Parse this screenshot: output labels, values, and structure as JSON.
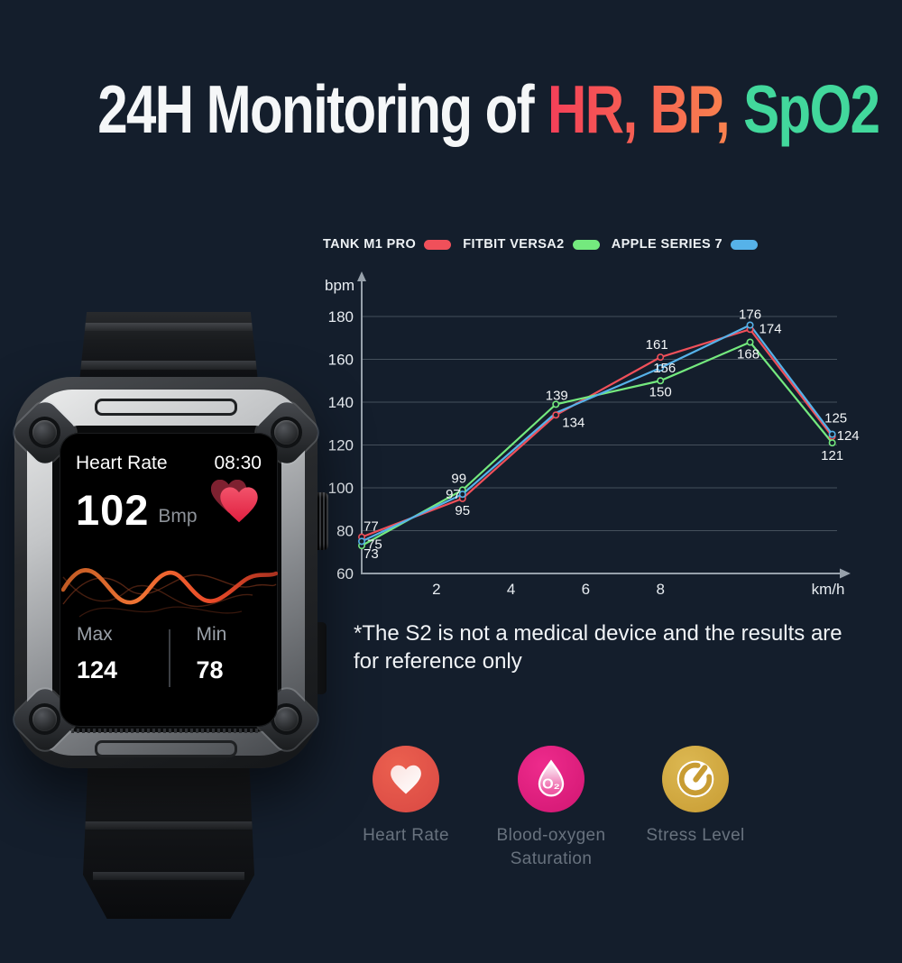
{
  "page": {
    "background_color": "#141e2c"
  },
  "title": {
    "white_part": "24H Monitoring of",
    "accent_part": "HR, BP,",
    "accent2_part": "SpO2",
    "accent_gradient": [
      "#f43f58",
      "#f9824e"
    ],
    "accent2_color": "#42d89c"
  },
  "watch": {
    "screen": {
      "app_title": "Heart Rate",
      "time": "08:30",
      "heart_rate_value": "102",
      "heart_rate_unit": "Bmp",
      "max_label": "Max",
      "max_value": "124",
      "min_label": "Min",
      "min_value": "78",
      "icons": [
        "heart-icon",
        "wave-graphic"
      ]
    }
  },
  "chart_data": {
    "type": "line",
    "y_axis_label": "bpm",
    "x_axis_label": "km/h",
    "y_ticks": [
      180,
      160,
      140,
      120,
      100,
      80,
      60
    ],
    "x_ticks": [
      2,
      4,
      6,
      8
    ],
    "ylim": [
      60,
      190
    ],
    "xlim": [
      0,
      13
    ],
    "grid": "horizontal-only",
    "legend_position": "top",
    "x": [
      0,
      2.7,
      5.2,
      8,
      10.4,
      12.6
    ],
    "series": [
      {
        "name": "TANK M1 PRO",
        "color": "#f0505a",
        "values": [
          77,
          95,
          134,
          161,
          174,
          124
        ]
      },
      {
        "name": "FITBIT VERSA2",
        "color": "#74e97e",
        "values": [
          73,
          99,
          139,
          150,
          168,
          121
        ]
      },
      {
        "name": "APPLE SERIES 7",
        "color": "#56b2e9",
        "values": [
          75,
          97,
          135,
          156,
          176,
          125
        ],
        "unlabeled_points": [
          2
        ]
      }
    ]
  },
  "disclaimer": "*The S2 is not a medical device and the results are for reference only",
  "features": {
    "items": [
      {
        "line1": "Heart Rate",
        "line2": "",
        "icon": "heart-icon",
        "color_top": "#eb604f",
        "color_bottom": "#d94843"
      },
      {
        "line1": "Blood-oxygen",
        "line2": "Saturation",
        "icon": "o2-drop-icon",
        "color_top": "#ee2b8c",
        "color_bottom": "#d11672",
        "drop_label": "O₂"
      },
      {
        "line1": "Stress Level",
        "line2": "",
        "icon": "gauge-icon",
        "color_top": "#dcb852",
        "color_bottom": "#c89c33"
      }
    ]
  }
}
